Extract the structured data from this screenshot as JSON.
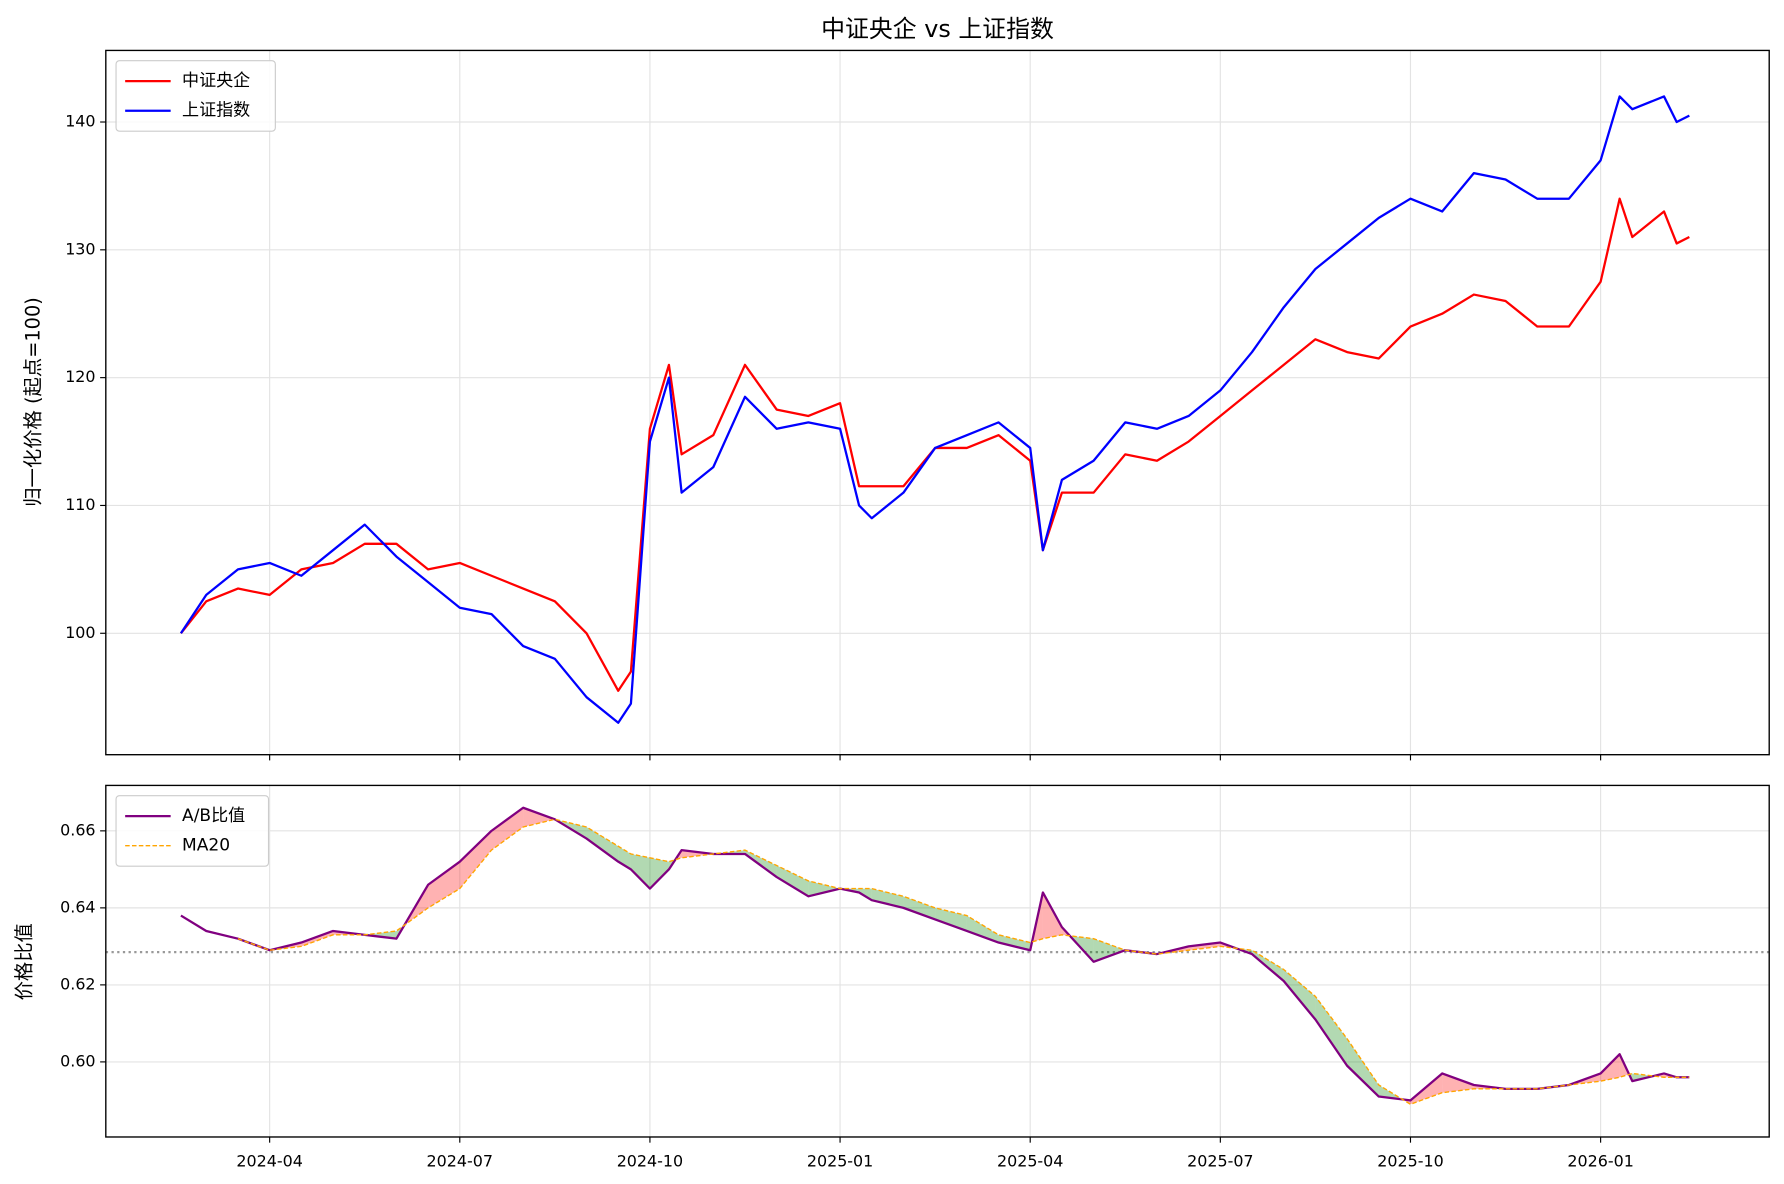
{
  "chart_data": [
    {
      "type": "line",
      "title": "中证央企 vs 上证指数",
      "y_label": "归一化价格 (起点=100)",
      "x": [
        1.6,
        2.0,
        2.5,
        3.0,
        3.5,
        4.0,
        4.5,
        5.0,
        5.5,
        6.0,
        6.5,
        7.0,
        7.5,
        8.0,
        8.5,
        8.7,
        9.0,
        9.3,
        9.5,
        10.0,
        10.5,
        11.0,
        11.5,
        12.0,
        12.3,
        12.5,
        13.0,
        13.5,
        14.0,
        14.5,
        15.0,
        15.2,
        15.5,
        16.0,
        16.5,
        17.0,
        17.5,
        18.0,
        18.5,
        19.0,
        19.5,
        20.0,
        20.5,
        21.0,
        21.5,
        22.0,
        22.5,
        23.0,
        23.5,
        24.0,
        24.3,
        24.5,
        25.0,
        25.2,
        25.4
      ],
      "xlim": [
        0.415,
        26.66
      ],
      "ylim": [
        90.5,
        145.6
      ],
      "yticks": [
        100,
        110,
        120,
        130,
        140
      ],
      "grid": true,
      "legend": "upper left",
      "series": [
        {
          "name": "中证央企",
          "color": "#ff0000",
          "values": [
            100,
            102.5,
            103.5,
            103,
            105,
            105.5,
            107,
            107,
            105,
            105.5,
            104.5,
            103.5,
            102.5,
            100,
            95.5,
            97,
            116,
            121,
            114,
            115.5,
            121,
            117.5,
            117,
            118,
            111.5,
            111.5,
            111.5,
            114.5,
            114.5,
            115.5,
            113.5,
            106.5,
            111,
            111,
            114,
            113.5,
            115,
            117,
            119,
            121,
            123,
            122,
            121.5,
            124,
            125,
            126.5,
            126,
            124,
            124,
            127.5,
            134,
            131,
            133,
            130.5,
            131
          ]
        },
        {
          "name": "上证指数",
          "color": "#0000ff",
          "values": [
            100,
            103,
            105,
            105.5,
            104.5,
            106.5,
            108.5,
            106,
            104,
            102,
            101.5,
            99,
            98,
            95,
            93,
            94.5,
            115,
            120,
            111,
            113,
            118.5,
            116,
            116.5,
            116,
            110,
            109,
            111,
            114.5,
            115.5,
            116.5,
            114.5,
            106.5,
            112,
            113.5,
            116.5,
            116,
            117,
            119,
            122,
            125.5,
            128.5,
            130.5,
            132.5,
            134,
            133,
            136,
            135.5,
            134,
            134,
            137,
            142,
            141,
            142,
            140,
            140.5
          ]
        }
      ]
    },
    {
      "type": "line",
      "y_label": "价格比值",
      "xlim": [
        0.415,
        26.66
      ],
      "xticks": [
        {
          "value": 3,
          "label": "2024-04"
        },
        {
          "value": 6,
          "label": "2024-07"
        },
        {
          "value": 9,
          "label": "2024-10"
        },
        {
          "value": 12,
          "label": "2025-01"
        },
        {
          "value": 15,
          "label": "2025-04"
        },
        {
          "value": 18,
          "label": "2025-07"
        },
        {
          "value": 21,
          "label": "2025-10"
        },
        {
          "value": 24,
          "label": "2026-01"
        }
      ],
      "ylim": [
        0.5805,
        0.6718
      ],
      "yticks": [
        {
          "value": 0.6,
          "label": "0.60"
        },
        0.62,
        0.64,
        0.66
      ],
      "grid": true,
      "legend": "upper left",
      "reference_line": 0.6285,
      "fill_between": {
        "above_color": "#ff0000",
        "below_color": "#008000"
      },
      "series": [
        {
          "name": "A/B比值",
          "color": "#800080",
          "values": [
            0.638,
            0.634,
            0.632,
            0.629,
            0.631,
            0.634,
            0.633,
            0.632,
            0.646,
            0.652,
            0.66,
            0.666,
            0.663,
            0.658,
            0.652,
            0.65,
            0.645,
            0.65,
            0.655,
            0.654,
            0.654,
            0.648,
            0.643,
            0.645,
            0.644,
            0.642,
            0.64,
            0.637,
            0.634,
            0.631,
            0.629,
            0.644,
            0.635,
            0.626,
            0.629,
            0.628,
            0.63,
            0.631,
            0.628,
            0.621,
            0.611,
            0.599,
            0.591,
            0.59,
            0.597,
            0.594,
            0.593,
            0.593,
            0.594,
            0.597,
            0.602,
            0.595,
            0.597,
            0.596,
            0.596
          ]
        },
        {
          "name": "MA20",
          "color": "#ffa500",
          "dashed": true,
          "values": [
            null,
            null,
            0.632,
            0.629,
            0.63,
            0.633,
            0.633,
            0.634,
            0.64,
            0.645,
            0.655,
            0.661,
            0.663,
            0.661,
            0.656,
            0.654,
            0.653,
            0.652,
            0.653,
            0.654,
            0.655,
            0.651,
            0.647,
            0.645,
            0.645,
            0.645,
            0.643,
            0.64,
            0.638,
            0.633,
            0.631,
            0.632,
            0.633,
            0.632,
            0.629,
            0.628,
            0.629,
            0.63,
            0.629,
            0.624,
            0.617,
            0.606,
            0.594,
            0.589,
            0.592,
            0.593,
            0.593,
            0.593,
            0.594,
            0.595,
            0.596,
            0.597,
            0.596,
            0.596,
            0.596
          ]
        }
      ]
    }
  ]
}
